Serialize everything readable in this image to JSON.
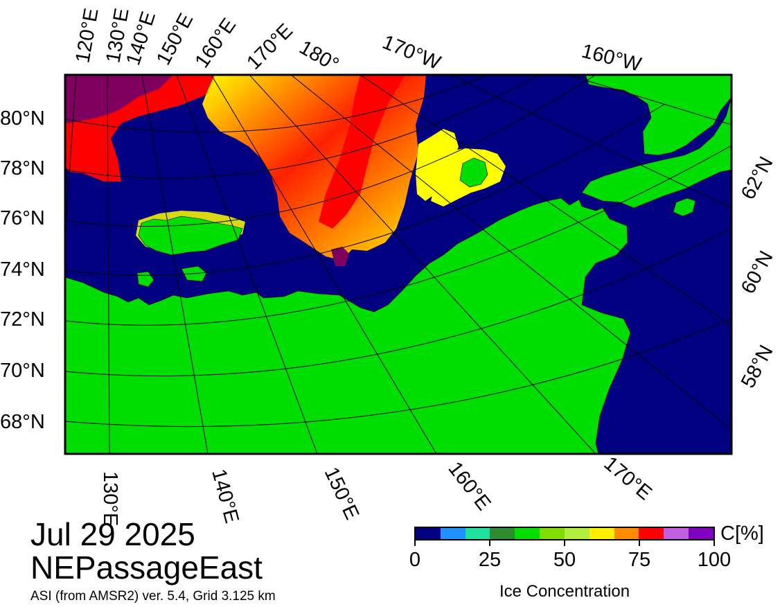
{
  "map": {
    "date": "Jul 29 2025",
    "region": "NEPassageEast",
    "source": "ASI (from AMSR2) ver. 5.4,  Grid 3.125 km",
    "colors": {
      "ocean": "#000080",
      "land": "#00dd00",
      "high_ice": "#800060",
      "mid_ice": "#ff0000",
      "low_ice": "#ffff00",
      "graticule": "#000000"
    },
    "top_lon_labels": [
      "120°E",
      "130°E",
      "140°E",
      "150°E",
      "160°E",
      "170°E",
      "180°",
      "170°W",
      "160°W"
    ],
    "left_lat_labels": [
      "80°N",
      "78°N",
      "76°N",
      "74°N",
      "72°N",
      "70°N",
      "68°N"
    ],
    "right_lat_labels": [
      "62°N",
      "60°N",
      "58°N"
    ],
    "bottom_lon_labels": [
      "130°E",
      "140°E",
      "150°E",
      "160°E",
      "170°E"
    ]
  },
  "legend": {
    "title": "Ice Concentration",
    "unit": "C[%]",
    "ticks": [
      "0",
      "25",
      "50",
      "75",
      "100"
    ],
    "colors": [
      "#000080",
      "#1e90ff",
      "#20e0a0",
      "#2e8b2e",
      "#00dd00",
      "#7fdd00",
      "#b0ee40",
      "#ffee00",
      "#ff8c00",
      "#ff0000",
      "#c060e0",
      "#8000c0"
    ]
  }
}
